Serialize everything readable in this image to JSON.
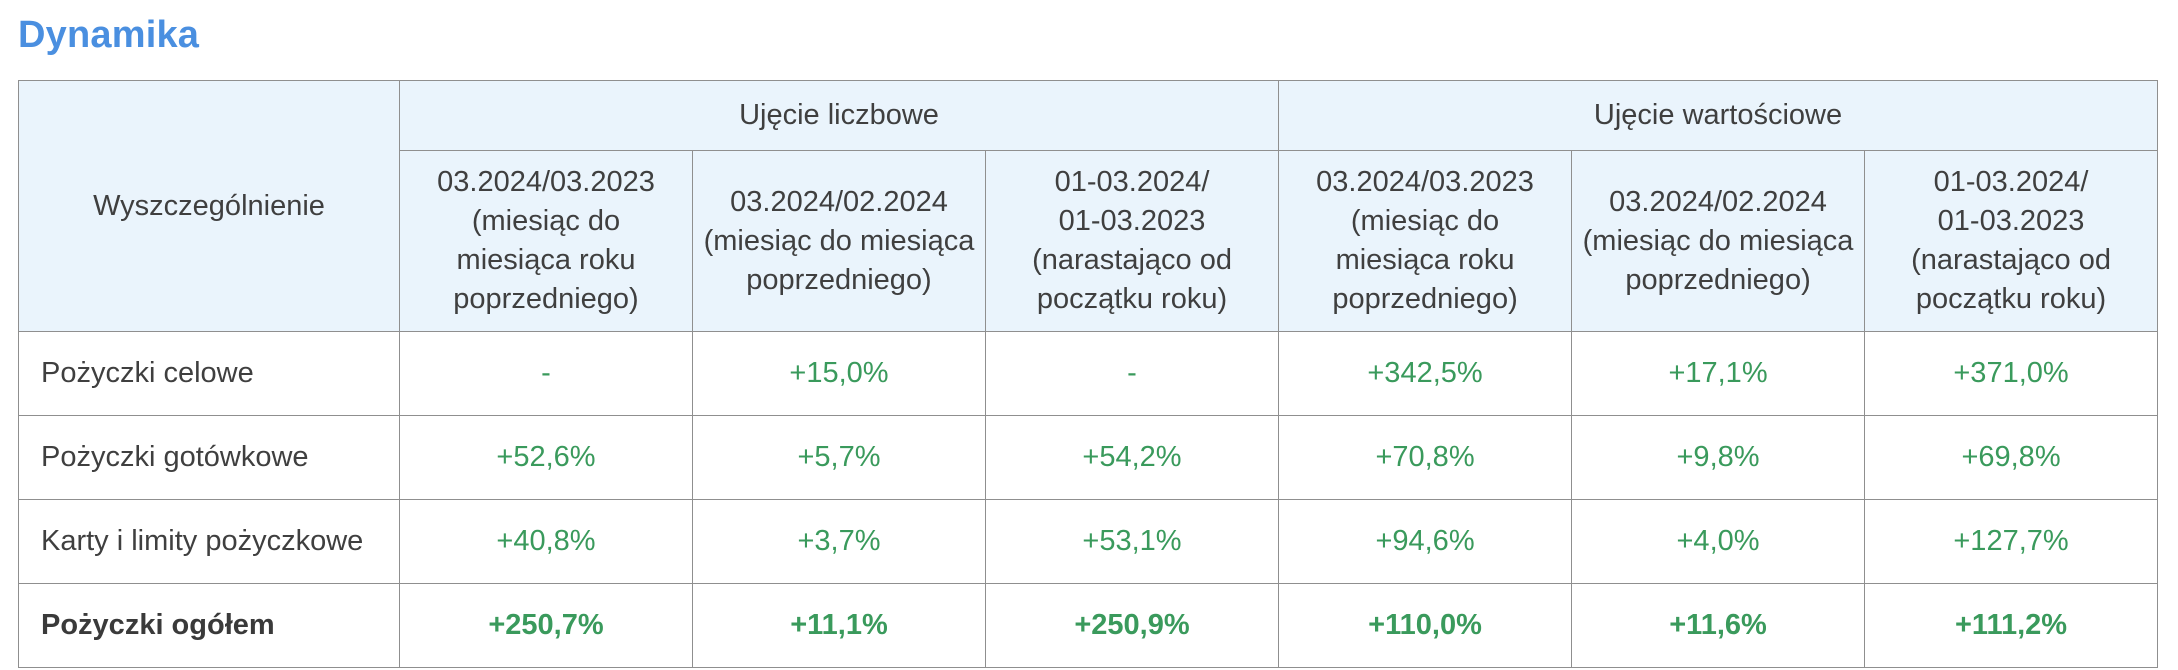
{
  "title": "Dynamika",
  "table": {
    "row_header": "Wyszczególnienie",
    "groups": [
      "Ujęcie liczbowe",
      "Ujęcie wartościowe"
    ],
    "subheaders": [
      [
        "03.2024/03.2023",
        "(miesiąc do",
        "miesiąca roku",
        "poprzedniego)"
      ],
      [
        "03.2024/02.2024",
        "(miesiąc do miesiąca",
        "poprzedniego)"
      ],
      [
        "01-03.2024/",
        "01-03.2023",
        "(narastająco od",
        "początku roku)"
      ],
      [
        "03.2024/03.2023",
        "(miesiąc do",
        "miesiąca roku",
        "poprzedniego)"
      ],
      [
        "03.2024/02.2024",
        "(miesiąc do miesiąca",
        "poprzedniego)"
      ],
      [
        "01-03.2024/",
        "01-03.2023",
        "(narastająco od",
        "początku roku)"
      ]
    ],
    "rows": [
      {
        "label": "Pożyczki celowe",
        "values": [
          "-",
          "+15,0%",
          "-",
          "+342,5%",
          "+17,1%",
          "+371,0%"
        ]
      },
      {
        "label": "Pożyczki gotówkowe",
        "values": [
          "+52,6%",
          "+5,7%",
          "+54,2%",
          "+70,8%",
          "+9,8%",
          "+69,8%"
        ]
      },
      {
        "label": "Karty i limity pożyczkowe",
        "values": [
          "+40,8%",
          "+3,7%",
          "+53,1%",
          "+94,6%",
          "+4,0%",
          "+127,7%"
        ]
      },
      {
        "label": "Pożyczki ogółem",
        "values": [
          "+250,7%",
          "+11,1%",
          "+250,9%",
          "+110,0%",
          "+11,6%",
          "+111,2%"
        ]
      }
    ]
  },
  "colors": {
    "title": "#4a8fe0",
    "header_bg": "#eaf4fc",
    "value_text": "#3a9a5c",
    "border": "#8f8f8f"
  }
}
